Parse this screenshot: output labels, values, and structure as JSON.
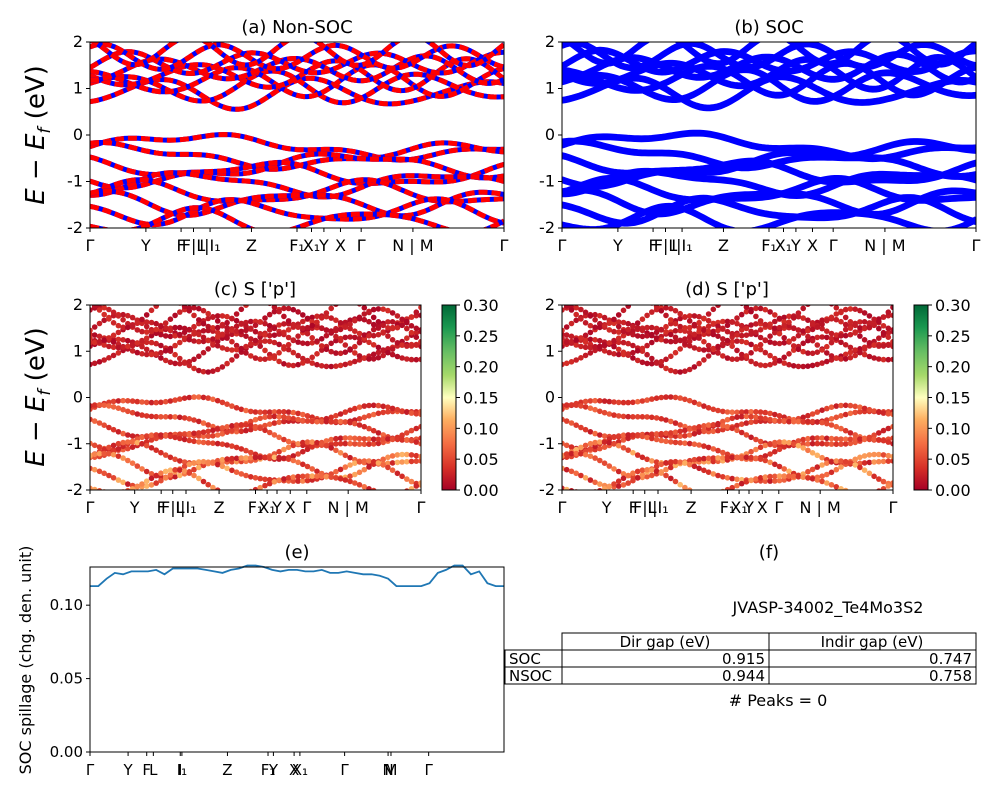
{
  "chart_data": [
    {
      "id": "a",
      "type": "line",
      "title": "(a) Non-SOC",
      "ylabel": "E − E_f (eV)",
      "ylim": [
        -2,
        2
      ],
      "yticks": [
        -2,
        -1,
        0,
        1,
        2
      ],
      "colors": [
        "#ff0000",
        "#0000ff"
      ],
      "xticks": [
        {
          "label": "Γ",
          "pos": 0.0
        },
        {
          "label": "Y",
          "pos": 0.135
        },
        {
          "label": "F",
          "pos": 0.22
        },
        {
          "label": "F|L",
          "pos": 0.25
        },
        {
          "label": "I|I₁",
          "pos": 0.29
        },
        {
          "label": "Z",
          "pos": 0.39
        },
        {
          "label": "F₁",
          "pos": 0.5
        },
        {
          "label": "X₁",
          "pos": 0.535
        },
        {
          "label": "Y",
          "pos": 0.565
        },
        {
          "label": "X",
          "pos": 0.605
        },
        {
          "label": "Γ",
          "pos": 0.655
        },
        {
          "label": "N | M",
          "pos": 0.78
        },
        {
          "label": "Γ",
          "pos": 1.0
        }
      ]
    },
    {
      "id": "b",
      "type": "line",
      "title": "(b) SOC",
      "ylim": [
        -2,
        2
      ],
      "yticks": [
        -2,
        -1,
        0,
        1,
        2
      ],
      "colors": [
        "#0000ff"
      ],
      "xticks": [
        {
          "label": "Γ",
          "pos": 0.0
        },
        {
          "label": "Y",
          "pos": 0.135
        },
        {
          "label": "F",
          "pos": 0.22
        },
        {
          "label": "F|L",
          "pos": 0.25
        },
        {
          "label": "I|I₁",
          "pos": 0.29
        },
        {
          "label": "Z",
          "pos": 0.39
        },
        {
          "label": "F₁",
          "pos": 0.5
        },
        {
          "label": "X₁",
          "pos": 0.535
        },
        {
          "label": "Y",
          "pos": 0.565
        },
        {
          "label": "X",
          "pos": 0.605
        },
        {
          "label": "Γ",
          "pos": 0.655
        },
        {
          "label": "N | M",
          "pos": 0.78
        },
        {
          "label": "Γ",
          "pos": 1.0
        }
      ]
    },
    {
      "id": "c",
      "type": "scatter",
      "title": "(c)  S ['p']",
      "ylabel": "E − E_f (eV)",
      "ylim": [
        -2,
        2
      ],
      "yticks": [
        -2,
        -1,
        0,
        1,
        2
      ],
      "colorbar": {
        "range": [
          0.0,
          0.3
        ],
        "ticks": [
          "0.00",
          "0.05",
          "0.10",
          "0.15",
          "0.20",
          "0.25",
          "0.30"
        ],
        "colormap": "RdYlGn"
      },
      "xticks": [
        {
          "label": "Γ",
          "pos": 0.0
        },
        {
          "label": "Y",
          "pos": 0.135
        },
        {
          "label": "F",
          "pos": 0.215
        },
        {
          "label": "F|L",
          "pos": 0.25
        },
        {
          "label": "I|I₁",
          "pos": 0.29
        },
        {
          "label": "Z",
          "pos": 0.39
        },
        {
          "label": "F₁",
          "pos": 0.5
        },
        {
          "label": "X₁",
          "pos": 0.535
        },
        {
          "label": "Y",
          "pos": 0.565
        },
        {
          "label": "X",
          "pos": 0.605
        },
        {
          "label": "Γ",
          "pos": 0.655
        },
        {
          "label": "N | M",
          "pos": 0.78
        },
        {
          "label": "Γ",
          "pos": 1.0
        }
      ]
    },
    {
      "id": "d",
      "type": "scatter",
      "title": "(d) S ['p']",
      "ylim": [
        -2,
        2
      ],
      "yticks": [
        -2,
        -1,
        0,
        1,
        2
      ],
      "colorbar": {
        "range": [
          0.0,
          0.3
        ],
        "ticks": [
          "0.00",
          "0.05",
          "0.10",
          "0.15",
          "0.20",
          "0.25",
          "0.30"
        ],
        "colormap": "RdYlGn"
      },
      "xticks": [
        {
          "label": "Γ",
          "pos": 0.0
        },
        {
          "label": "Y",
          "pos": 0.135
        },
        {
          "label": "F",
          "pos": 0.215
        },
        {
          "label": "F|L",
          "pos": 0.25
        },
        {
          "label": "I|I₁",
          "pos": 0.29
        },
        {
          "label": "Z",
          "pos": 0.39
        },
        {
          "label": "F₁",
          "pos": 0.5
        },
        {
          "label": "X₁",
          "pos": 0.535
        },
        {
          "label": "Y",
          "pos": 0.565
        },
        {
          "label": "X",
          "pos": 0.605
        },
        {
          "label": "Γ",
          "pos": 0.655
        },
        {
          "label": "N | M",
          "pos": 0.78
        },
        {
          "label": "Γ",
          "pos": 1.0
        }
      ]
    },
    {
      "id": "e",
      "type": "line",
      "title": "(e)",
      "ylabel": "SOC spillage (chg. den. unit)",
      "ylim": [
        0.0,
        0.126
      ],
      "yticks": [
        0.0,
        0.05,
        0.1
      ],
      "ytick_labels": [
        "0.00",
        "0.05",
        "0.10"
      ],
      "color": "#1f77b4",
      "xticks": [
        {
          "label": "Γ",
          "pos": 0.0
        },
        {
          "label": "Y",
          "pos": 0.092
        },
        {
          "label": "F",
          "pos": 0.137
        },
        {
          "label": "L",
          "pos": 0.153
        },
        {
          "label": "I",
          "pos": 0.218
        },
        {
          "label": "I₁",
          "pos": 0.222
        },
        {
          "label": "Z",
          "pos": 0.332
        },
        {
          "label": "F₁",
          "pos": 0.43
        },
        {
          "label": "Y",
          "pos": 0.443
        },
        {
          "label": "X",
          "pos": 0.493
        },
        {
          "label": "X₁",
          "pos": 0.507
        },
        {
          "label": "Γ",
          "pos": 0.615
        },
        {
          "label": "N",
          "pos": 0.72
        },
        {
          "label": "M",
          "pos": 0.727
        },
        {
          "label": "Γ",
          "pos": 0.818
        }
      ],
      "x": [
        0.0,
        0.02,
        0.04,
        0.06,
        0.08,
        0.1,
        0.12,
        0.14,
        0.16,
        0.18,
        0.2,
        0.22,
        0.24,
        0.26,
        0.28,
        0.3,
        0.32,
        0.34,
        0.36,
        0.38,
        0.4,
        0.42,
        0.44,
        0.46,
        0.48,
        0.5,
        0.52,
        0.54,
        0.56,
        0.58,
        0.6,
        0.62,
        0.64,
        0.66,
        0.68,
        0.7,
        0.72,
        0.74,
        0.76,
        0.78,
        0.8,
        0.82,
        0.84,
        0.86,
        0.88,
        0.9,
        0.92,
        0.94,
        0.96,
        0.98,
        1.0
      ],
      "y": [
        0.113,
        0.113,
        0.118,
        0.122,
        0.121,
        0.123,
        0.123,
        0.123,
        0.124,
        0.121,
        0.125,
        0.125,
        0.125,
        0.125,
        0.124,
        0.123,
        0.122,
        0.124,
        0.125,
        0.127,
        0.127,
        0.126,
        0.124,
        0.123,
        0.124,
        0.124,
        0.123,
        0.123,
        0.124,
        0.122,
        0.122,
        0.123,
        0.122,
        0.121,
        0.121,
        0.12,
        0.118,
        0.113,
        0.113,
        0.113,
        0.113,
        0.115,
        0.122,
        0.124,
        0.127,
        0.127,
        0.121,
        0.123,
        0.115,
        0.113,
        0.113
      ]
    }
  ],
  "panel_f": {
    "title": "(f)",
    "material": "JVASP-34002_Te4Mo3S2",
    "table": {
      "headers": [
        "Dir gap (eV)",
        "Indir gap (eV)"
      ],
      "rows": [
        {
          "label": "SOC",
          "dir": "0.915",
          "indir": "0.747"
        },
        {
          "label": "NSOC",
          "dir": "0.944",
          "indir": "0.758"
        }
      ]
    },
    "peaks": "# Peaks = 0"
  }
}
